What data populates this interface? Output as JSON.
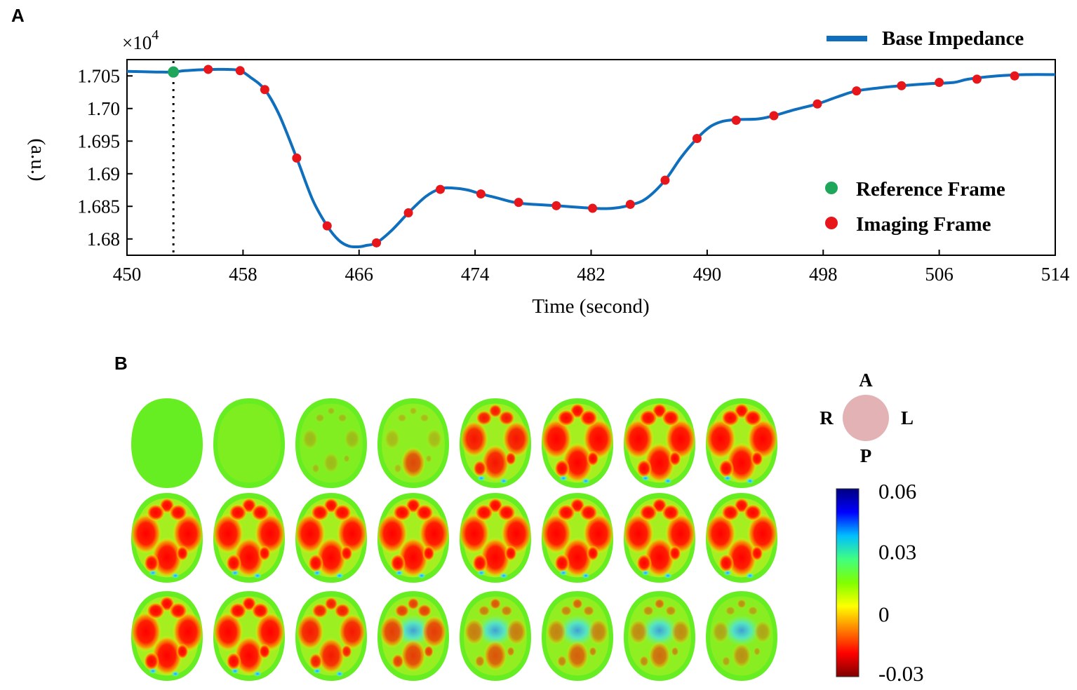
{
  "panels": {
    "a": "A",
    "b": "B"
  },
  "chart_data": {
    "type": "line",
    "xlabel": "Time (second)",
    "ylabel": "(a.u.)",
    "y_multiplier": {
      "base": "×10",
      "exp": "4"
    },
    "xlim": [
      450,
      514
    ],
    "ylim": [
      1.6775,
      1.7075
    ],
    "xticks": [
      450,
      458,
      466,
      474,
      482,
      490,
      498,
      506,
      514
    ],
    "yticks": [
      {
        "v": 1.68,
        "label": "1.68"
      },
      {
        "v": 1.685,
        "label": "1.685"
      },
      {
        "v": 1.69,
        "label": "1.69"
      },
      {
        "v": 1.695,
        "label": "1.695"
      },
      {
        "v": 1.7,
        "label": "1.70"
      },
      {
        "v": 1.705,
        "label": "1.705"
      }
    ],
    "series": [
      {
        "name": "Base Impedance",
        "color": "#0f6fbd",
        "x": [
          450,
          452,
          453.2,
          454,
          455.6,
          456,
          457,
          457.8,
          458.5,
          459.5,
          460.5,
          461.7,
          462.8,
          463.8,
          464.6,
          465.3,
          466,
          466.5,
          467.2,
          468.2,
          469.4,
          470.6,
          471.6,
          472.5,
          473.5,
          474.4,
          475.5,
          477,
          479.6,
          482.1,
          483.5,
          484.7,
          485.8,
          487.1,
          488.2,
          489.3,
          490.2,
          491,
          492,
          493.5,
          494.6,
          496,
          497.6,
          499,
          500.3,
          502,
          503.4,
          505.3,
          507,
          508,
          510,
          512,
          514
        ],
        "y": [
          1.7057,
          1.7056,
          1.7056,
          1.7058,
          1.706,
          1.706,
          1.706,
          1.7058,
          1.7048,
          1.7029,
          1.699,
          1.6924,
          1.686,
          1.682,
          1.6798,
          1.6789,
          1.6788,
          1.679,
          1.6794,
          1.6812,
          1.684,
          1.6865,
          1.6877,
          1.6878,
          1.6875,
          1.6869,
          1.6863,
          1.6855,
          1.6851,
          1.6847,
          1.6847,
          1.6852,
          1.6862,
          1.689,
          1.6925,
          1.6954,
          1.6972,
          1.698,
          1.6983,
          1.6984,
          1.6989,
          1.6998,
          1.7007,
          1.7018,
          1.7027,
          1.7032,
          1.7035,
          1.7038,
          1.704,
          1.7045,
          1.705,
          1.7052,
          1.7052
        ]
      }
    ],
    "reference_frame": {
      "name": "Reference Frame",
      "color": "#1ea65a",
      "x": 453.2,
      "y": 1.7056
    },
    "imaging_frames": {
      "name": "Imaging Frame",
      "color": "#e8151a",
      "x": [
        455.6,
        457.8,
        459.5,
        461.7,
        463.8,
        467.2,
        469.4,
        471.6,
        474.4,
        477,
        479.6,
        482.1,
        484.7,
        487.1,
        489.3,
        492,
        494.6,
        497.6,
        500.3,
        503.4,
        506,
        508.6,
        511.2
      ],
      "y": [
        1.706,
        1.7058,
        1.7029,
        1.6924,
        1.682,
        1.6794,
        1.684,
        1.6876,
        1.6869,
        1.6856,
        1.6851,
        1.6847,
        1.6853,
        1.689,
        1.6954,
        1.6982,
        1.6989,
        1.7007,
        1.7027,
        1.7035,
        1.704,
        1.7045,
        1.705
      ]
    },
    "legend": {
      "line": "Base Impedance",
      "reference": "Reference Frame",
      "imaging": "Imaging Frame"
    }
  },
  "panel_b": {
    "rows": 3,
    "cols": 8,
    "orientation": {
      "anterior": "A",
      "posterior": "P",
      "right": "R",
      "left": "L",
      "disc_color": "#e3b2b4"
    },
    "colorbar": {
      "ticks": [
        {
          "v": 0.06,
          "label": "0.06"
        },
        {
          "v": 0.03,
          "label": "0.03"
        },
        {
          "v": 0,
          "label": "0"
        },
        {
          "v": -0.03,
          "label": "-0.03"
        }
      ],
      "stops": [
        "#00007f",
        "#0000ff",
        "#00bfff",
        "#40ff80",
        "#80ff00",
        "#ffff00",
        "#ff8000",
        "#ff0000",
        "#7f0000"
      ]
    },
    "frame_intensity": [
      0,
      0.05,
      0.12,
      0.4,
      0.82,
      1,
      1,
      1,
      1,
      1,
      1,
      1,
      1,
      1,
      1,
      1,
      1,
      0.95,
      0.8,
      0.65,
      0.55,
      0.5,
      0.45,
      0.3
    ]
  }
}
